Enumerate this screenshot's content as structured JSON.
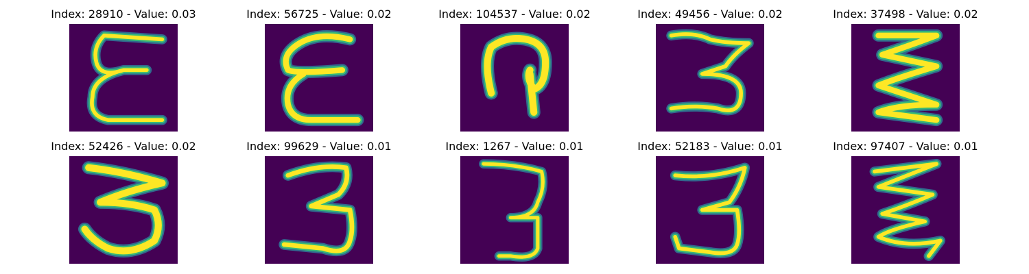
{
  "colormap": {
    "background": "#440154",
    "low": "#31688e",
    "mid": "#35b779",
    "high": "#fde725"
  },
  "panels": [
    {
      "title": "Index: 28910 - Value: 0.03",
      "index": 28910,
      "value": 0.03
    },
    {
      "title": "Index: 56725 - Value: 0.02",
      "index": 56725,
      "value": 0.02
    },
    {
      "title": "Index: 104537 - Value: 0.02",
      "index": 104537,
      "value": 0.02
    },
    {
      "title": "Index: 49456 - Value: 0.02",
      "index": 49456,
      "value": 0.02
    },
    {
      "title": "Index: 37498 - Value: 0.02",
      "index": 37498,
      "value": 0.02
    },
    {
      "title": "Index: 52426 - Value: 0.02",
      "index": 52426,
      "value": 0.02
    },
    {
      "title": "Index: 99629 - Value: 0.01",
      "index": 99629,
      "value": 0.01
    },
    {
      "title": "Index: 1267 - Value: 0.01",
      "index": 1267,
      "value": 0.01
    },
    {
      "title": "Index: 52183 - Value: 0.01",
      "index": 52183,
      "value": 0.01
    },
    {
      "title": "Index: 97407 - Value: 0.01",
      "index": 97407,
      "value": 0.01
    }
  ]
}
